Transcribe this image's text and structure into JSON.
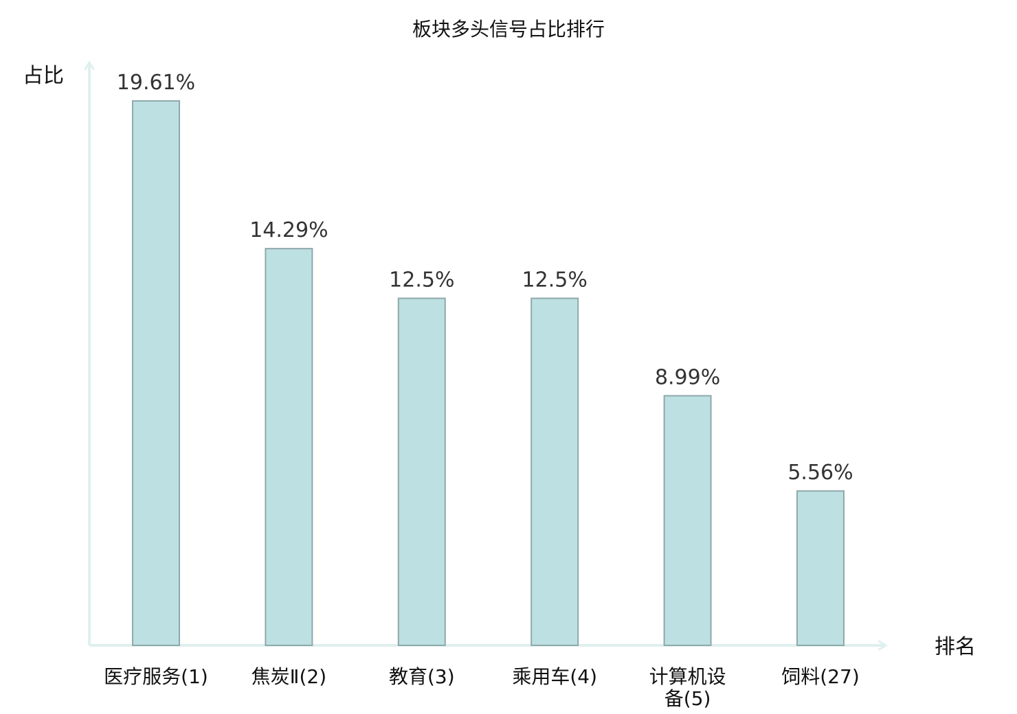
{
  "chart_data": {
    "type": "bar",
    "title": "板块多头信号占比排行",
    "ylabel": "占比",
    "xlabel": "排名",
    "categories": [
      {
        "name": "医疗服务",
        "rank": "(1)",
        "highlight": false
      },
      {
        "name": "焦炭Ⅱ",
        "rank": "(2)",
        "highlight": false
      },
      {
        "name": "教育",
        "rank": "(3)",
        "highlight": false
      },
      {
        "name": "乘用车",
        "rank": "(4)",
        "highlight": false
      },
      {
        "name": "计算机设",
        "name2": "备",
        "rank": "(5)",
        "highlight": false
      },
      {
        "name": "饲料",
        "rank": "(27)",
        "highlight": true
      }
    ],
    "values": [
      19.61,
      14.29,
      12.5,
      12.5,
      8.99,
      5.56
    ],
    "value_labels": [
      "19.61%",
      "14.29%",
      "12.5%",
      "12.5%",
      "8.99%",
      "5.56%"
    ],
    "ylim": [
      0,
      19.61
    ],
    "grid": false
  },
  "colors": {
    "bar_fill": "#bde0e3",
    "bar_stroke": "#8fa8ab",
    "axis": "#dff0ee",
    "highlight_text": "#d62020",
    "text": "#111111",
    "value_text": "#333333"
  }
}
